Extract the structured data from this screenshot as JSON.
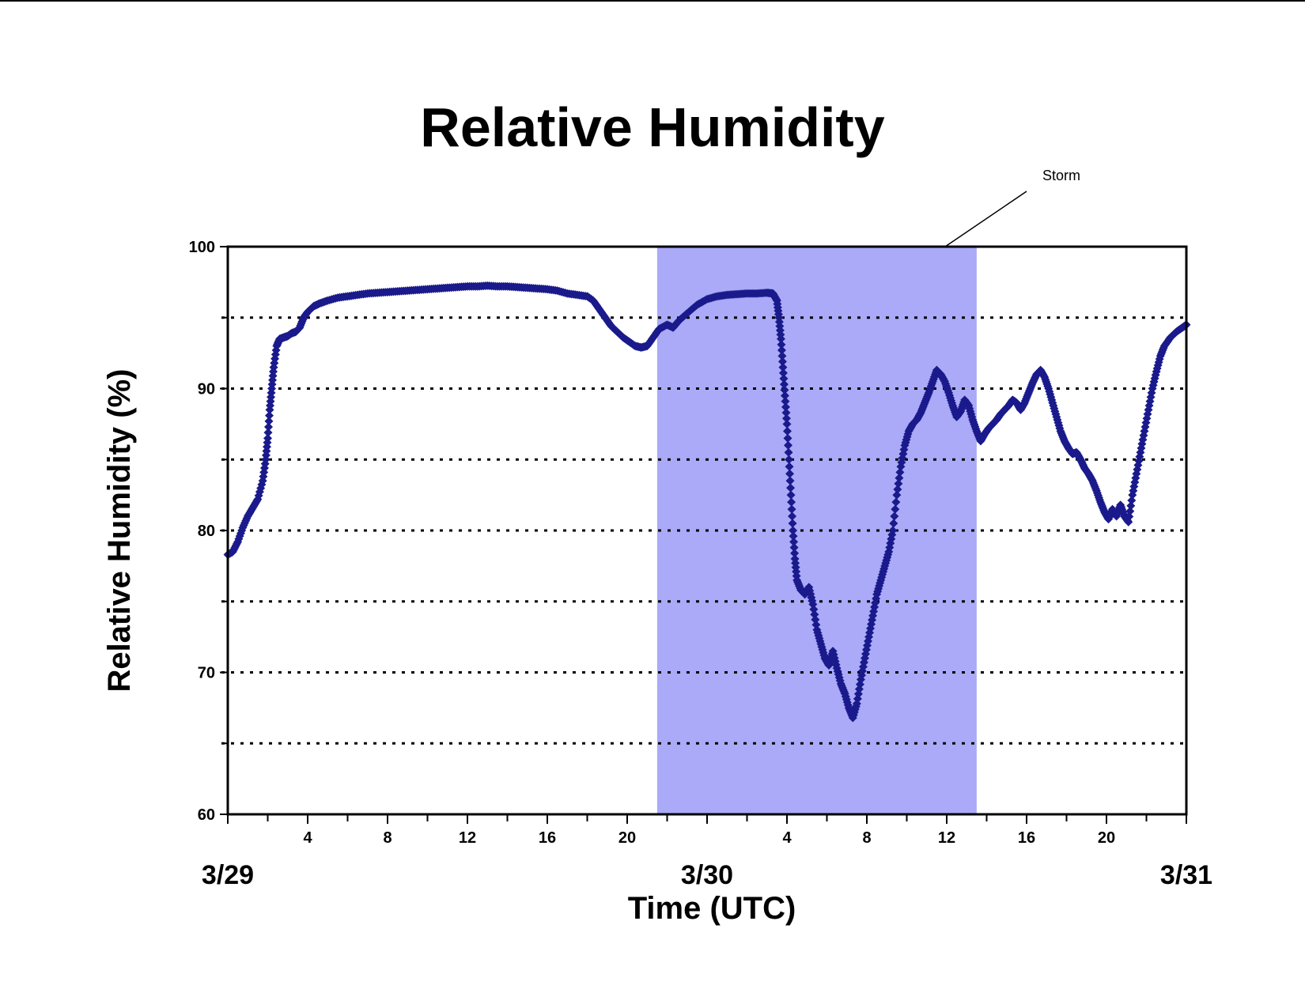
{
  "chart_data": {
    "type": "scatter",
    "title": "Relative Humidity",
    "xlabel": "Time (UTC)",
    "ylabel": "Relative Humidity (%)",
    "ylim": [
      60,
      100
    ],
    "yticks": [
      60,
      70,
      80,
      90,
      100
    ],
    "y_gridlines": [
      65,
      70,
      75,
      80,
      85,
      90,
      95
    ],
    "grid_style": "dotted",
    "x_unit": "hours since 3/29 00 UTC",
    "xlim": [
      0,
      48
    ],
    "x_hour_tick_labels": [
      {
        "hour": 4,
        "label": "4"
      },
      {
        "hour": 8,
        "label": "8"
      },
      {
        "hour": 12,
        "label": "12"
      },
      {
        "hour": 16,
        "label": "16"
      },
      {
        "hour": 20,
        "label": "20"
      },
      {
        "hour": 28,
        "label": "4"
      },
      {
        "hour": 32,
        "label": "8"
      },
      {
        "hour": 36,
        "label": "12"
      },
      {
        "hour": 40,
        "label": "16"
      },
      {
        "hour": 44,
        "label": "20"
      }
    ],
    "x_day_labels": [
      {
        "hour": 0,
        "label": "3/29"
      },
      {
        "hour": 24,
        "label": "3/30"
      },
      {
        "hour": 48,
        "label": "3/31"
      }
    ],
    "marker": "diamond",
    "colors": {
      "series": "#1a1a8c",
      "storm_band": "#aaaaf8",
      "axis": "#000000"
    },
    "storm": {
      "label": "Storm",
      "x_start": 21.5,
      "x_end": 37.5
    },
    "series": [
      {
        "points": [
          [
            0.0,
            78.3
          ],
          [
            0.25,
            78.5
          ],
          [
            0.5,
            79.2
          ],
          [
            0.75,
            80.2
          ],
          [
            1.0,
            81.0
          ],
          [
            1.25,
            81.6
          ],
          [
            1.5,
            82.2
          ],
          [
            1.75,
            83.5
          ],
          [
            1.9,
            85.0
          ],
          [
            2.0,
            86.5
          ],
          [
            2.1,
            88.5
          ],
          [
            2.2,
            90.0
          ],
          [
            2.3,
            91.5
          ],
          [
            2.45,
            93.0
          ],
          [
            2.6,
            93.5
          ],
          [
            2.8,
            93.6
          ],
          [
            3.0,
            93.7
          ],
          [
            3.2,
            93.9
          ],
          [
            3.4,
            94.0
          ],
          [
            3.6,
            94.3
          ],
          [
            3.8,
            95.0
          ],
          [
            4.0,
            95.4
          ],
          [
            4.3,
            95.8
          ],
          [
            4.6,
            96.0
          ],
          [
            5.0,
            96.2
          ],
          [
            5.5,
            96.4
          ],
          [
            6.0,
            96.5
          ],
          [
            6.5,
            96.6
          ],
          [
            7.0,
            96.7
          ],
          [
            7.5,
            96.75
          ],
          [
            8.0,
            96.8
          ],
          [
            8.5,
            96.85
          ],
          [
            9.0,
            96.9
          ],
          [
            9.5,
            96.95
          ],
          [
            10.0,
            97.0
          ],
          [
            10.5,
            97.05
          ],
          [
            11.0,
            97.1
          ],
          [
            11.5,
            97.15
          ],
          [
            12.0,
            97.2
          ],
          [
            12.5,
            97.2
          ],
          [
            13.0,
            97.25
          ],
          [
            13.5,
            97.2
          ],
          [
            14.0,
            97.2
          ],
          [
            14.5,
            97.15
          ],
          [
            15.0,
            97.1
          ],
          [
            15.5,
            97.05
          ],
          [
            16.0,
            97.0
          ],
          [
            16.5,
            96.9
          ],
          [
            17.0,
            96.7
          ],
          [
            17.5,
            96.6
          ],
          [
            18.0,
            96.5
          ],
          [
            18.3,
            96.2
          ],
          [
            18.6,
            95.6
          ],
          [
            18.9,
            95.0
          ],
          [
            19.2,
            94.4
          ],
          [
            19.5,
            94.0
          ],
          [
            19.8,
            93.6
          ],
          [
            20.1,
            93.3
          ],
          [
            20.4,
            93.0
          ],
          [
            20.7,
            92.9
          ],
          [
            21.0,
            93.0
          ],
          [
            21.3,
            93.6
          ],
          [
            21.6,
            94.2
          ],
          [
            22.0,
            94.5
          ],
          [
            22.3,
            94.3
          ],
          [
            22.6,
            94.8
          ],
          [
            23.0,
            95.3
          ],
          [
            23.5,
            95.9
          ],
          [
            24.0,
            96.3
          ],
          [
            24.5,
            96.5
          ],
          [
            25.0,
            96.6
          ],
          [
            25.5,
            96.65
          ],
          [
            26.0,
            96.7
          ],
          [
            26.5,
            96.7
          ],
          [
            27.0,
            96.75
          ],
          [
            27.3,
            96.7
          ],
          [
            27.5,
            96.2
          ],
          [
            27.6,
            95.0
          ],
          [
            27.7,
            93.5
          ],
          [
            27.8,
            91.5
          ],
          [
            27.9,
            89.5
          ],
          [
            28.0,
            87.5
          ],
          [
            28.1,
            85.0
          ],
          [
            28.2,
            82.5
          ],
          [
            28.3,
            80.0
          ],
          [
            28.4,
            78.0
          ],
          [
            28.5,
            76.5
          ],
          [
            28.7,
            75.8
          ],
          [
            28.9,
            75.5
          ],
          [
            29.1,
            76.0
          ],
          [
            29.3,
            74.8
          ],
          [
            29.5,
            73.0
          ],
          [
            29.7,
            72.0
          ],
          [
            29.9,
            71.0
          ],
          [
            30.1,
            70.5
          ],
          [
            30.3,
            71.5
          ],
          [
            30.5,
            70.3
          ],
          [
            30.7,
            69.2
          ],
          [
            30.9,
            68.5
          ],
          [
            31.1,
            67.5
          ],
          [
            31.3,
            66.8
          ],
          [
            31.5,
            67.8
          ],
          [
            31.7,
            69.5
          ],
          [
            31.9,
            71.0
          ],
          [
            32.1,
            72.5
          ],
          [
            32.3,
            74.0
          ],
          [
            32.5,
            75.5
          ],
          [
            32.7,
            76.5
          ],
          [
            32.9,
            77.5
          ],
          [
            33.1,
            78.5
          ],
          [
            33.3,
            80.0
          ],
          [
            33.5,
            82.5
          ],
          [
            33.7,
            84.5
          ],
          [
            33.9,
            86.0
          ],
          [
            34.1,
            87.0
          ],
          [
            34.3,
            87.5
          ],
          [
            34.5,
            87.8
          ],
          [
            34.7,
            88.3
          ],
          [
            34.9,
            89.0
          ],
          [
            35.1,
            89.7
          ],
          [
            35.3,
            90.5
          ],
          [
            35.5,
            91.3
          ],
          [
            35.7,
            91.0
          ],
          [
            35.9,
            90.5
          ],
          [
            36.1,
            89.7
          ],
          [
            36.3,
            88.8
          ],
          [
            36.5,
            88.0
          ],
          [
            36.7,
            88.4
          ],
          [
            36.9,
            89.2
          ],
          [
            37.1,
            88.8
          ],
          [
            37.3,
            87.8
          ],
          [
            37.5,
            87.0
          ],
          [
            37.7,
            86.3
          ],
          [
            37.9,
            86.8
          ],
          [
            38.1,
            87.2
          ],
          [
            38.3,
            87.5
          ],
          [
            38.5,
            87.8
          ],
          [
            38.7,
            88.2
          ],
          [
            38.9,
            88.5
          ],
          [
            39.1,
            88.8
          ],
          [
            39.3,
            89.2
          ],
          [
            39.5,
            89.0
          ],
          [
            39.7,
            88.5
          ],
          [
            39.9,
            89.0
          ],
          [
            40.1,
            89.7
          ],
          [
            40.3,
            90.4
          ],
          [
            40.5,
            91.0
          ],
          [
            40.7,
            91.3
          ],
          [
            40.9,
            90.8
          ],
          [
            41.1,
            90.0
          ],
          [
            41.3,
            89.0
          ],
          [
            41.5,
            88.0
          ],
          [
            41.7,
            87.0
          ],
          [
            41.9,
            86.3
          ],
          [
            42.1,
            85.8
          ],
          [
            42.3,
            85.4
          ],
          [
            42.5,
            85.5
          ],
          [
            42.7,
            85.0
          ],
          [
            42.9,
            84.4
          ],
          [
            43.1,
            84.0
          ],
          [
            43.3,
            83.5
          ],
          [
            43.5,
            82.8
          ],
          [
            43.7,
            82.0
          ],
          [
            43.9,
            81.3
          ],
          [
            44.1,
            80.8
          ],
          [
            44.3,
            81.5
          ],
          [
            44.5,
            81.0
          ],
          [
            44.7,
            81.8
          ],
          [
            44.9,
            81.0
          ],
          [
            45.1,
            80.6
          ],
          [
            45.3,
            82.5
          ],
          [
            45.5,
            84.0
          ],
          [
            45.7,
            85.5
          ],
          [
            45.9,
            87.0
          ],
          [
            46.1,
            88.5
          ],
          [
            46.3,
            90.0
          ],
          [
            46.5,
            91.2
          ],
          [
            46.7,
            92.3
          ],
          [
            46.9,
            93.0
          ],
          [
            47.2,
            93.6
          ],
          [
            47.5,
            94.0
          ],
          [
            47.8,
            94.3
          ],
          [
            48.0,
            94.5
          ]
        ]
      }
    ]
  }
}
